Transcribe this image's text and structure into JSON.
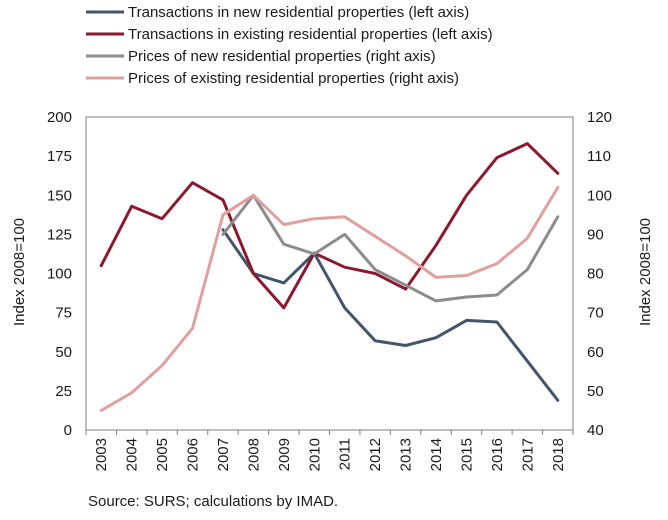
{
  "chart_data": {
    "type": "line",
    "x": [
      "2003",
      "2004",
      "2005",
      "2006",
      "2007",
      "2008",
      "2009",
      "2010",
      "2011",
      "2012",
      "2013",
      "2014",
      "2015",
      "2016",
      "2017",
      "2018"
    ],
    "left_axis": {
      "label": "Index 2008=100",
      "ylim": [
        0,
        200
      ],
      "ticks": [
        "0",
        "25",
        "50",
        "75",
        "100",
        "125",
        "150",
        "175",
        "200"
      ]
    },
    "right_axis": {
      "label": "Index 2008=100",
      "ylim": [
        40,
        120
      ],
      "ticks": [
        "40",
        "50",
        "60",
        "70",
        "80",
        "90",
        "100",
        "110",
        "120"
      ]
    },
    "series": [
      {
        "name": "Transactions in new residential properties (left axis)",
        "axis": "left",
        "color": "#44546a",
        "values": [
          null,
          null,
          null,
          null,
          128,
          100,
          94,
          113,
          78,
          57,
          54,
          59,
          70,
          69,
          44,
          19
        ]
      },
      {
        "name": "Transactions in existing residential properties (left axis)",
        "axis": "left",
        "color": "#8b1a2e",
        "values": [
          105,
          143,
          135,
          158,
          147,
          100,
          78,
          113,
          104,
          100,
          90,
          118,
          150,
          174,
          183,
          164
        ]
      },
      {
        "name": "Prices of new residential properties (right axis)",
        "axis": "right",
        "color": "#8c8c8c",
        "values": [
          null,
          null,
          null,
          null,
          90,
          100,
          87.5,
          85,
          90,
          81,
          77,
          73,
          74,
          74.5,
          81,
          94.5
        ]
      },
      {
        "name": "Prices of existing residential properties (right axis)",
        "axis": "right",
        "color": "#e0a0a0",
        "values": [
          45,
          49.5,
          56.5,
          66,
          95,
          100,
          92.5,
          94,
          94.5,
          89.5,
          84.5,
          79,
          79.5,
          82.5,
          89,
          102
        ]
      }
    ],
    "grid": false,
    "legend": "top-left"
  },
  "source": "Source: SURS; calculations by IMAD."
}
